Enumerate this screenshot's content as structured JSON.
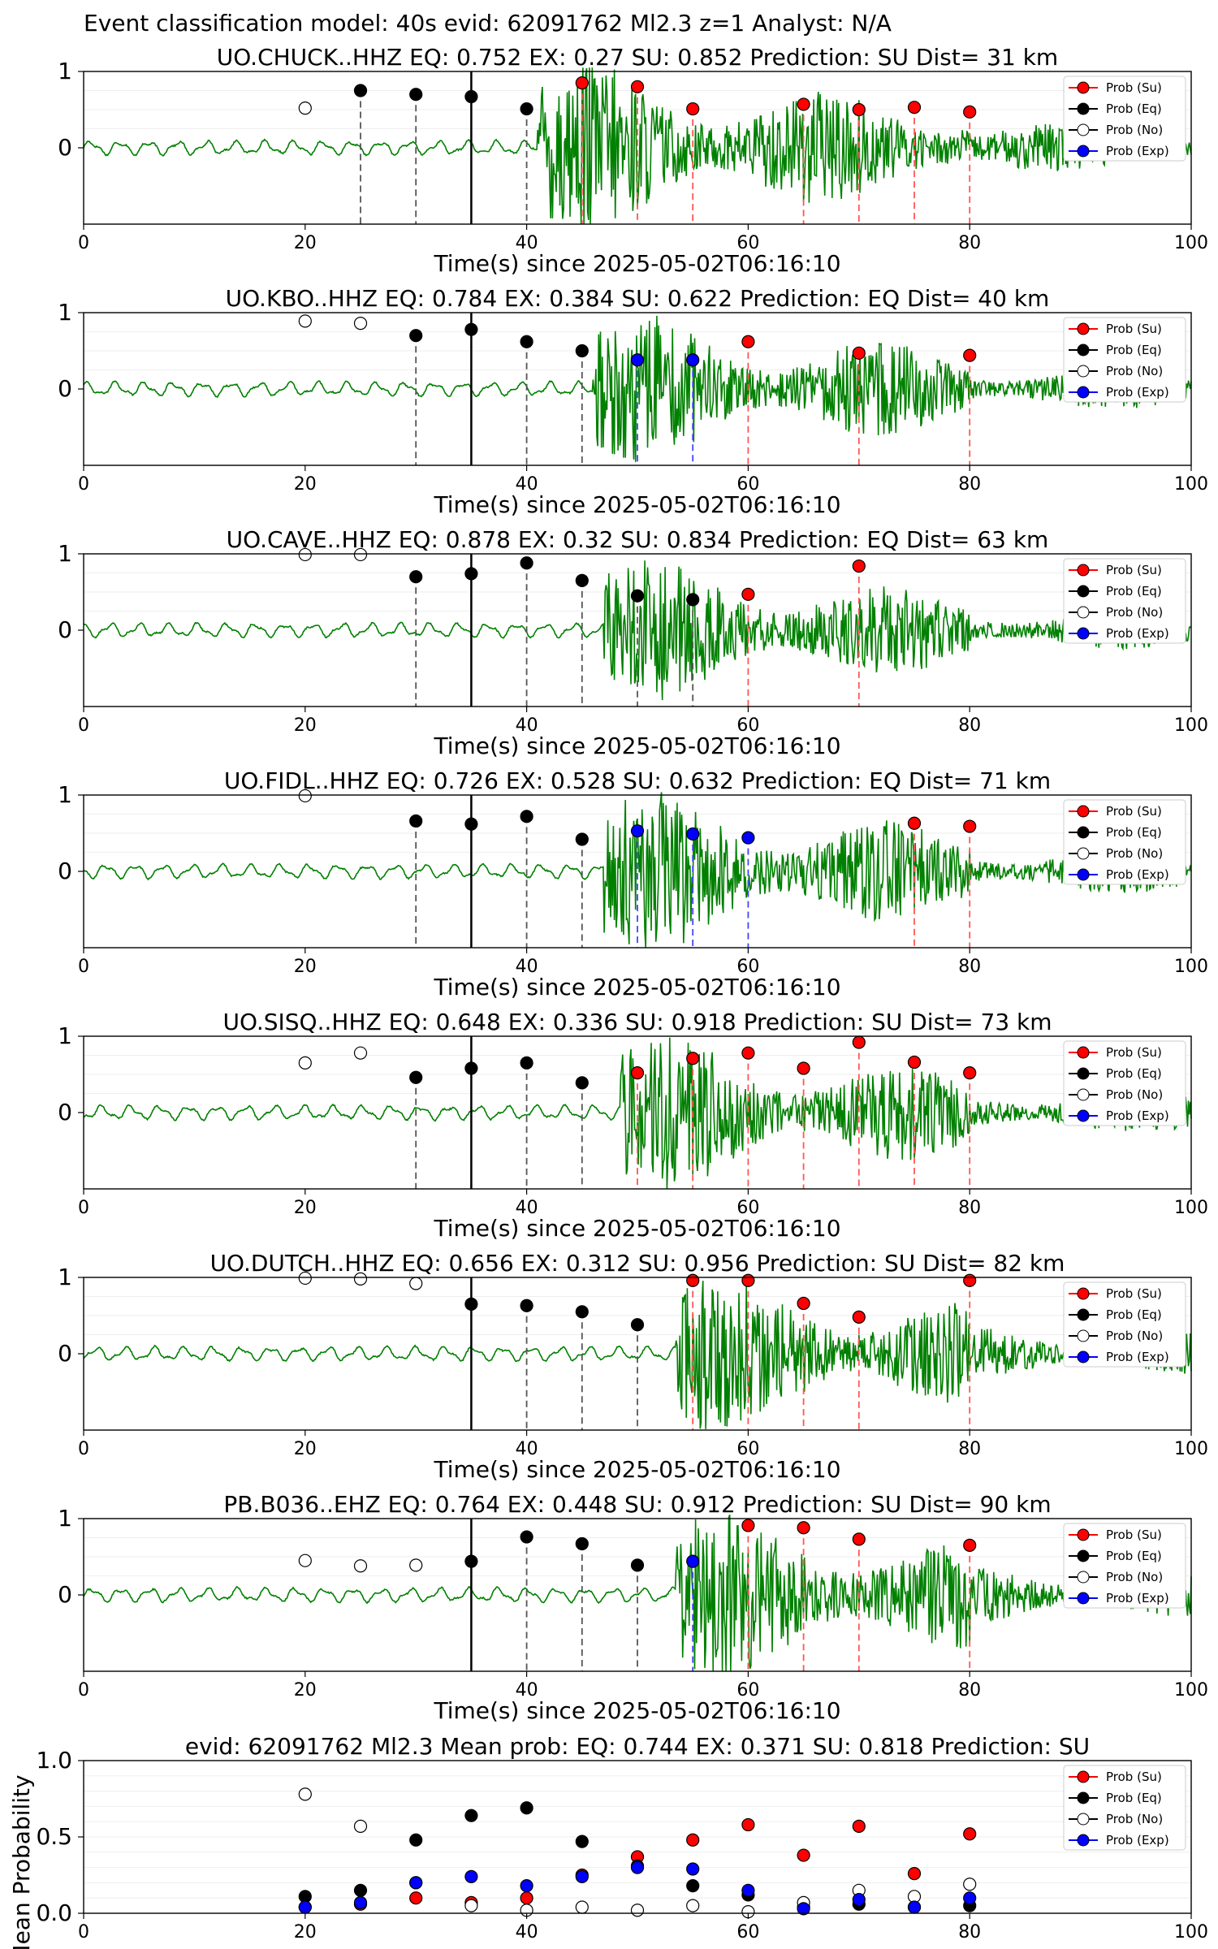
{
  "figure": {
    "suptitle": "Event classification model: 40s evid: 62091762 Ml2.3 z=1 Analyst: N/A"
  },
  "legend_labels": [
    "Prob (Su)",
    "Prob (Eq)",
    "Prob (No)",
    "Prob (Exp)"
  ],
  "colors": {
    "su": "#ff0000",
    "eq": "#000000",
    "no": "#ffffff",
    "exp": "#0000ff",
    "wave": "#008000"
  },
  "chart_data": [
    {
      "type": "scatter",
      "title": "UO.CHUCK..HHZ   EQ: 0.752  EX: 0.27  SU: 0.852   Prediction: SU    Dist= 31 km",
      "xlabel": "Time(s) since 2025-05-02T06:16:10",
      "xlim": [
        0,
        100
      ],
      "xticks": [
        0,
        20,
        40,
        60,
        80,
        100
      ],
      "yticks": [
        0,
        1
      ],
      "p_time": 35,
      "wave_onset": 41,
      "wave_amp": 1.0,
      "markers": [
        {
          "x": 20,
          "cls": "no",
          "y": 0.52
        },
        {
          "x": 25,
          "cls": "eq",
          "y": 0.75
        },
        {
          "x": 30,
          "cls": "eq",
          "y": 0.7
        },
        {
          "x": 35,
          "cls": "eq",
          "y": 0.67
        },
        {
          "x": 40,
          "cls": "eq",
          "y": 0.51
        },
        {
          "x": 45,
          "cls": "su",
          "y": 0.85
        },
        {
          "x": 50,
          "cls": "su",
          "y": 0.8
        },
        {
          "x": 55,
          "cls": "su",
          "y": 0.51
        },
        {
          "x": 65,
          "cls": "su",
          "y": 0.57
        },
        {
          "x": 70,
          "cls": "su",
          "y": 0.5
        },
        {
          "x": 75,
          "cls": "su",
          "y": 0.53
        },
        {
          "x": 80,
          "cls": "su",
          "y": 0.47
        }
      ]
    },
    {
      "type": "scatter",
      "title": "UO.KBO..HHZ   EQ: 0.784  EX: 0.384  SU: 0.622   Prediction: EQ    Dist= 40 km",
      "xlabel": "Time(s) since 2025-05-02T06:16:10",
      "xlim": [
        0,
        100
      ],
      "xticks": [
        0,
        20,
        40,
        60,
        80,
        100
      ],
      "yticks": [
        0,
        1
      ],
      "p_time": 35,
      "wave_onset": 46,
      "wave_amp": 0.85,
      "markers": [
        {
          "x": 20,
          "cls": "no",
          "y": 0.89
        },
        {
          "x": 25,
          "cls": "no",
          "y": 0.86
        },
        {
          "x": 30,
          "cls": "eq",
          "y": 0.7
        },
        {
          "x": 35,
          "cls": "eq",
          "y": 0.78
        },
        {
          "x": 40,
          "cls": "eq",
          "y": 0.62
        },
        {
          "x": 45,
          "cls": "eq",
          "y": 0.5
        },
        {
          "x": 50,
          "cls": "exp",
          "y": 0.38
        },
        {
          "x": 55,
          "cls": "exp",
          "y": 0.38
        },
        {
          "x": 60,
          "cls": "su",
          "y": 0.62
        },
        {
          "x": 70,
          "cls": "su",
          "y": 0.47
        },
        {
          "x": 80,
          "cls": "su",
          "y": 0.44
        }
      ]
    },
    {
      "type": "scatter",
      "title": "UO.CAVE..HHZ   EQ: 0.878  EX: 0.32  SU: 0.834   Prediction: EQ    Dist= 63 km",
      "xlabel": "Time(s) since 2025-05-02T06:16:10",
      "xlim": [
        0,
        100
      ],
      "xticks": [
        0,
        20,
        40,
        60,
        80,
        100
      ],
      "yticks": [
        0,
        1
      ],
      "p_time": 35,
      "wave_onset": 47,
      "wave_amp": 0.8,
      "markers": [
        {
          "x": 20,
          "cls": "no",
          "y": 0.99
        },
        {
          "x": 25,
          "cls": "no",
          "y": 0.99
        },
        {
          "x": 30,
          "cls": "eq",
          "y": 0.7
        },
        {
          "x": 35,
          "cls": "eq",
          "y": 0.74
        },
        {
          "x": 40,
          "cls": "eq",
          "y": 0.88
        },
        {
          "x": 45,
          "cls": "eq",
          "y": 0.65
        },
        {
          "x": 50,
          "cls": "eq",
          "y": 0.45
        },
        {
          "x": 55,
          "cls": "eq",
          "y": 0.4
        },
        {
          "x": 60,
          "cls": "su",
          "y": 0.47
        },
        {
          "x": 70,
          "cls": "su",
          "y": 0.84
        }
      ]
    },
    {
      "type": "scatter",
      "title": "UO.FIDL..HHZ   EQ: 0.726  EX: 0.528  SU: 0.632   Prediction: EQ    Dist= 71 km",
      "xlabel": "Time(s) since 2025-05-02T06:16:10",
      "xlim": [
        0,
        100
      ],
      "xticks": [
        0,
        20,
        40,
        60,
        80,
        100
      ],
      "yticks": [
        0,
        1
      ],
      "p_time": 35,
      "wave_onset": 47,
      "wave_amp": 0.9,
      "markers": [
        {
          "x": 20,
          "cls": "no",
          "y": 0.99
        },
        {
          "x": 30,
          "cls": "eq",
          "y": 0.66
        },
        {
          "x": 35,
          "cls": "eq",
          "y": 0.62
        },
        {
          "x": 40,
          "cls": "eq",
          "y": 0.72
        },
        {
          "x": 45,
          "cls": "eq",
          "y": 0.42
        },
        {
          "x": 50,
          "cls": "exp",
          "y": 0.53
        },
        {
          "x": 55,
          "cls": "exp",
          "y": 0.49
        },
        {
          "x": 60,
          "cls": "exp",
          "y": 0.44
        },
        {
          "x": 75,
          "cls": "su",
          "y": 0.63
        },
        {
          "x": 80,
          "cls": "su",
          "y": 0.59
        }
      ]
    },
    {
      "type": "scatter",
      "title": "UO.SISQ..HHZ   EQ: 0.648  EX: 0.336  SU: 0.918   Prediction: SU    Dist= 73 km",
      "xlabel": "Time(s) since 2025-05-02T06:16:10",
      "xlim": [
        0,
        100
      ],
      "xticks": [
        0,
        20,
        40,
        60,
        80,
        100
      ],
      "yticks": [
        0,
        1
      ],
      "p_time": 35,
      "wave_onset": 48.5,
      "wave_amp": 0.85,
      "markers": [
        {
          "x": 20,
          "cls": "no",
          "y": 0.65
        },
        {
          "x": 25,
          "cls": "no",
          "y": 0.78
        },
        {
          "x": 30,
          "cls": "eq",
          "y": 0.46
        },
        {
          "x": 35,
          "cls": "eq",
          "y": 0.58
        },
        {
          "x": 40,
          "cls": "eq",
          "y": 0.65
        },
        {
          "x": 45,
          "cls": "eq",
          "y": 0.39
        },
        {
          "x": 50,
          "cls": "su",
          "y": 0.52
        },
        {
          "x": 55,
          "cls": "su",
          "y": 0.71
        },
        {
          "x": 60,
          "cls": "su",
          "y": 0.78
        },
        {
          "x": 65,
          "cls": "su",
          "y": 0.58
        },
        {
          "x": 70,
          "cls": "su",
          "y": 0.92
        },
        {
          "x": 75,
          "cls": "su",
          "y": 0.66
        },
        {
          "x": 80,
          "cls": "su",
          "y": 0.52
        }
      ]
    },
    {
      "type": "scatter",
      "title": "UO.DUTCH..HHZ   EQ: 0.656  EX: 0.312  SU: 0.956   Prediction: SU    Dist= 82 km",
      "xlabel": "Time(s) since 2025-05-02T06:16:10",
      "xlim": [
        0,
        100
      ],
      "xticks": [
        0,
        20,
        40,
        60,
        80,
        100
      ],
      "yticks": [
        0,
        1
      ],
      "p_time": 35,
      "wave_onset": 53.5,
      "wave_amp": 0.9,
      "markers": [
        {
          "x": 20,
          "cls": "no",
          "y": 0.99
        },
        {
          "x": 25,
          "cls": "no",
          "y": 0.98
        },
        {
          "x": 30,
          "cls": "no",
          "y": 0.92
        },
        {
          "x": 35,
          "cls": "eq",
          "y": 0.65
        },
        {
          "x": 40,
          "cls": "eq",
          "y": 0.63
        },
        {
          "x": 45,
          "cls": "eq",
          "y": 0.55
        },
        {
          "x": 50,
          "cls": "eq",
          "y": 0.38
        },
        {
          "x": 55,
          "cls": "su",
          "y": 0.96
        },
        {
          "x": 60,
          "cls": "su",
          "y": 0.96
        },
        {
          "x": 65,
          "cls": "su",
          "y": 0.66
        },
        {
          "x": 70,
          "cls": "su",
          "y": 0.48
        },
        {
          "x": 80,
          "cls": "su",
          "y": 0.96
        }
      ]
    },
    {
      "type": "scatter",
      "title": "PB.B036..EHZ   EQ: 0.764  EX: 0.448  SU: 0.912   Prediction: SU    Dist= 90 km",
      "xlabel": "Time(s) since 2025-05-02T06:16:10",
      "xlim": [
        0,
        100
      ],
      "xticks": [
        0,
        20,
        40,
        60,
        80,
        100
      ],
      "yticks": [
        0,
        1
      ],
      "p_time": 35,
      "wave_onset": 53.5,
      "wave_amp": 0.95,
      "markers": [
        {
          "x": 20,
          "cls": "no",
          "y": 0.45
        },
        {
          "x": 25,
          "cls": "no",
          "y": 0.38
        },
        {
          "x": 30,
          "cls": "no",
          "y": 0.39
        },
        {
          "x": 35,
          "cls": "eq",
          "y": 0.44
        },
        {
          "x": 40,
          "cls": "eq",
          "y": 0.76
        },
        {
          "x": 45,
          "cls": "eq",
          "y": 0.67
        },
        {
          "x": 50,
          "cls": "eq",
          "y": 0.39
        },
        {
          "x": 55,
          "cls": "exp",
          "y": 0.44
        },
        {
          "x": 60,
          "cls": "su",
          "y": 0.91
        },
        {
          "x": 65,
          "cls": "su",
          "y": 0.88
        },
        {
          "x": 70,
          "cls": "su",
          "y": 0.73
        },
        {
          "x": 80,
          "cls": "su",
          "y": 0.65
        }
      ]
    },
    {
      "type": "scatter",
      "title": "evid: 62091762  Ml2.3   Mean prob:   EQ: 0.744  EX: 0.371  SU: 0.818   Prediction: SU",
      "xlabel": "",
      "ylabel": "Mean Probability",
      "xlim": [
        0,
        100
      ],
      "ylim": [
        0,
        1
      ],
      "xticks": [
        0,
        20,
        40,
        60,
        80,
        100
      ],
      "yticks": [
        0.0,
        0.5,
        1.0
      ],
      "ytick_labels": [
        "0.0",
        "0.5",
        "1.0"
      ],
      "x": [
        20,
        25,
        30,
        35,
        40,
        45,
        50,
        55,
        60,
        65,
        70,
        75,
        80
      ],
      "series": [
        {
          "cls": "su",
          "values": [
            0.04,
            0.06,
            0.1,
            0.07,
            0.1,
            0.25,
            0.37,
            0.48,
            0.58,
            0.38,
            0.57,
            0.26,
            0.52
          ]
        },
        {
          "cls": "eq",
          "values": [
            0.11,
            0.15,
            0.48,
            0.64,
            0.69,
            0.47,
            0.31,
            0.18,
            0.12,
            0.04,
            0.06,
            0.04,
            0.05
          ]
        },
        {
          "cls": "no",
          "values": [
            0.78,
            0.57,
            0.2,
            0.05,
            0.02,
            0.04,
            0.02,
            0.05,
            0.01,
            0.07,
            0.15,
            0.11,
            0.19
          ]
        },
        {
          "cls": "exp",
          "values": [
            0.04,
            0.07,
            0.2,
            0.24,
            0.18,
            0.24,
            0.3,
            0.29,
            0.15,
            0.03,
            0.09,
            0.04,
            0.1
          ]
        }
      ]
    }
  ]
}
